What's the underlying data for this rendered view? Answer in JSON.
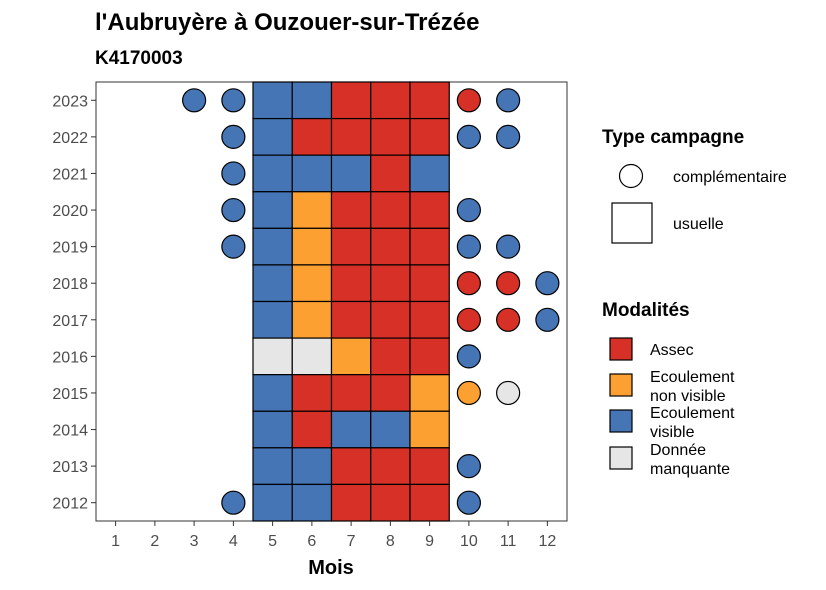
{
  "chart_data": {
    "type": "heatmap",
    "title": "l'Aubruyère à Ouzouer-sur-Trézée",
    "subtitle": "K4170003",
    "xlabel": "Mois",
    "ylabel": "",
    "x": [
      1,
      2,
      3,
      4,
      5,
      6,
      7,
      8,
      9,
      10,
      11,
      12
    ],
    "y": [
      2012,
      2013,
      2014,
      2015,
      2016,
      2017,
      2018,
      2019,
      2020,
      2021,
      2022,
      2023
    ],
    "legend_campagne": {
      "title": "Type campagne",
      "items": [
        {
          "key": "complementaire",
          "label": "complémentaire",
          "shape": "circle"
        },
        {
          "key": "usuelle",
          "label": "usuelle",
          "shape": "square"
        }
      ]
    },
    "legend_modalites": {
      "title": "Modalités",
      "items": [
        {
          "key": "assec",
          "label_lines": [
            "Assec"
          ],
          "color": "#D73027"
        },
        {
          "key": "ecoulement_non_visible",
          "label_lines": [
            "Ecoulement",
            "non visible"
          ],
          "color": "#FDA032"
        },
        {
          "key": "ecoulement_visible",
          "label_lines": [
            "Ecoulement",
            "visible"
          ],
          "color": "#4575B4"
        },
        {
          "key": "donnee_manquante",
          "label_lines": [
            "Donnée",
            "manquante"
          ],
          "color": "#E6E6E6"
        }
      ]
    },
    "observations": [
      {
        "year": 2023,
        "month": 3,
        "campagne": "complementaire",
        "modalite": "ecoulement_visible"
      },
      {
        "year": 2023,
        "month": 4,
        "campagne": "complementaire",
        "modalite": "ecoulement_visible"
      },
      {
        "year": 2023,
        "month": 5,
        "campagne": "usuelle",
        "modalite": "ecoulement_visible"
      },
      {
        "year": 2023,
        "month": 6,
        "campagne": "usuelle",
        "modalite": "ecoulement_visible"
      },
      {
        "year": 2023,
        "month": 7,
        "campagne": "usuelle",
        "modalite": "assec"
      },
      {
        "year": 2023,
        "month": 8,
        "campagne": "usuelle",
        "modalite": "assec"
      },
      {
        "year": 2023,
        "month": 9,
        "campagne": "usuelle",
        "modalite": "assec"
      },
      {
        "year": 2023,
        "month": 10,
        "campagne": "complementaire",
        "modalite": "assec"
      },
      {
        "year": 2023,
        "month": 11,
        "campagne": "complementaire",
        "modalite": "ecoulement_visible"
      },
      {
        "year": 2022,
        "month": 4,
        "campagne": "complementaire",
        "modalite": "ecoulement_visible"
      },
      {
        "year": 2022,
        "month": 5,
        "campagne": "usuelle",
        "modalite": "ecoulement_visible"
      },
      {
        "year": 2022,
        "month": 6,
        "campagne": "usuelle",
        "modalite": "assec"
      },
      {
        "year": 2022,
        "month": 7,
        "campagne": "usuelle",
        "modalite": "assec"
      },
      {
        "year": 2022,
        "month": 8,
        "campagne": "usuelle",
        "modalite": "assec"
      },
      {
        "year": 2022,
        "month": 9,
        "campagne": "usuelle",
        "modalite": "assec"
      },
      {
        "year": 2022,
        "month": 10,
        "campagne": "complementaire",
        "modalite": "ecoulement_visible"
      },
      {
        "year": 2022,
        "month": 11,
        "campagne": "complementaire",
        "modalite": "ecoulement_visible"
      },
      {
        "year": 2021,
        "month": 4,
        "campagne": "complementaire",
        "modalite": "ecoulement_visible"
      },
      {
        "year": 2021,
        "month": 5,
        "campagne": "usuelle",
        "modalite": "ecoulement_visible"
      },
      {
        "year": 2021,
        "month": 6,
        "campagne": "usuelle",
        "modalite": "ecoulement_visible"
      },
      {
        "year": 2021,
        "month": 7,
        "campagne": "usuelle",
        "modalite": "ecoulement_visible"
      },
      {
        "year": 2021,
        "month": 8,
        "campagne": "usuelle",
        "modalite": "assec"
      },
      {
        "year": 2021,
        "month": 9,
        "campagne": "usuelle",
        "modalite": "ecoulement_visible"
      },
      {
        "year": 2020,
        "month": 4,
        "campagne": "complementaire",
        "modalite": "ecoulement_visible"
      },
      {
        "year": 2020,
        "month": 5,
        "campagne": "usuelle",
        "modalite": "ecoulement_visible"
      },
      {
        "year": 2020,
        "month": 6,
        "campagne": "usuelle",
        "modalite": "ecoulement_non_visible"
      },
      {
        "year": 2020,
        "month": 7,
        "campagne": "usuelle",
        "modalite": "assec"
      },
      {
        "year": 2020,
        "month": 8,
        "campagne": "usuelle",
        "modalite": "assec"
      },
      {
        "year": 2020,
        "month": 9,
        "campagne": "usuelle",
        "modalite": "assec"
      },
      {
        "year": 2020,
        "month": 10,
        "campagne": "complementaire",
        "modalite": "ecoulement_visible"
      },
      {
        "year": 2019,
        "month": 4,
        "campagne": "complementaire",
        "modalite": "ecoulement_visible"
      },
      {
        "year": 2019,
        "month": 5,
        "campagne": "usuelle",
        "modalite": "ecoulement_visible"
      },
      {
        "year": 2019,
        "month": 6,
        "campagne": "usuelle",
        "modalite": "ecoulement_non_visible"
      },
      {
        "year": 2019,
        "month": 7,
        "campagne": "usuelle",
        "modalite": "assec"
      },
      {
        "year": 2019,
        "month": 8,
        "campagne": "usuelle",
        "modalite": "assec"
      },
      {
        "year": 2019,
        "month": 9,
        "campagne": "usuelle",
        "modalite": "assec"
      },
      {
        "year": 2019,
        "month": 10,
        "campagne": "complementaire",
        "modalite": "ecoulement_visible"
      },
      {
        "year": 2019,
        "month": 11,
        "campagne": "complementaire",
        "modalite": "ecoulement_visible"
      },
      {
        "year": 2018,
        "month": 5,
        "campagne": "usuelle",
        "modalite": "ecoulement_visible"
      },
      {
        "year": 2018,
        "month": 6,
        "campagne": "usuelle",
        "modalite": "ecoulement_non_visible"
      },
      {
        "year": 2018,
        "month": 7,
        "campagne": "usuelle",
        "modalite": "assec"
      },
      {
        "year": 2018,
        "month": 8,
        "campagne": "usuelle",
        "modalite": "assec"
      },
      {
        "year": 2018,
        "month": 9,
        "campagne": "usuelle",
        "modalite": "assec"
      },
      {
        "year": 2018,
        "month": 10,
        "campagne": "complementaire",
        "modalite": "assec"
      },
      {
        "year": 2018,
        "month": 11,
        "campagne": "complementaire",
        "modalite": "assec"
      },
      {
        "year": 2018,
        "month": 12,
        "campagne": "complementaire",
        "modalite": "ecoulement_visible"
      },
      {
        "year": 2017,
        "month": 5,
        "campagne": "usuelle",
        "modalite": "ecoulement_visible"
      },
      {
        "year": 2017,
        "month": 6,
        "campagne": "usuelle",
        "modalite": "ecoulement_non_visible"
      },
      {
        "year": 2017,
        "month": 7,
        "campagne": "usuelle",
        "modalite": "assec"
      },
      {
        "year": 2017,
        "month": 8,
        "campagne": "usuelle",
        "modalite": "assec"
      },
      {
        "year": 2017,
        "month": 9,
        "campagne": "usuelle",
        "modalite": "assec"
      },
      {
        "year": 2017,
        "month": 10,
        "campagne": "complementaire",
        "modalite": "assec"
      },
      {
        "year": 2017,
        "month": 11,
        "campagne": "complementaire",
        "modalite": "assec"
      },
      {
        "year": 2017,
        "month": 12,
        "campagne": "complementaire",
        "modalite": "ecoulement_visible"
      },
      {
        "year": 2016,
        "month": 5,
        "campagne": "usuelle",
        "modalite": "donnee_manquante"
      },
      {
        "year": 2016,
        "month": 6,
        "campagne": "usuelle",
        "modalite": "donnee_manquante"
      },
      {
        "year": 2016,
        "month": 7,
        "campagne": "usuelle",
        "modalite": "ecoulement_non_visible"
      },
      {
        "year": 2016,
        "month": 8,
        "campagne": "usuelle",
        "modalite": "assec"
      },
      {
        "year": 2016,
        "month": 9,
        "campagne": "usuelle",
        "modalite": "assec"
      },
      {
        "year": 2016,
        "month": 10,
        "campagne": "complementaire",
        "modalite": "ecoulement_visible"
      },
      {
        "year": 2015,
        "month": 5,
        "campagne": "usuelle",
        "modalite": "ecoulement_visible"
      },
      {
        "year": 2015,
        "month": 6,
        "campagne": "usuelle",
        "modalite": "assec"
      },
      {
        "year": 2015,
        "month": 7,
        "campagne": "usuelle",
        "modalite": "assec"
      },
      {
        "year": 2015,
        "month": 8,
        "campagne": "usuelle",
        "modalite": "assec"
      },
      {
        "year": 2015,
        "month": 9,
        "campagne": "usuelle",
        "modalite": "ecoulement_non_visible"
      },
      {
        "year": 2015,
        "month": 10,
        "campagne": "complementaire",
        "modalite": "ecoulement_non_visible"
      },
      {
        "year": 2015,
        "month": 11,
        "campagne": "complementaire",
        "modalite": "donnee_manquante"
      },
      {
        "year": 2014,
        "month": 5,
        "campagne": "usuelle",
        "modalite": "ecoulement_visible"
      },
      {
        "year": 2014,
        "month": 6,
        "campagne": "usuelle",
        "modalite": "assec"
      },
      {
        "year": 2014,
        "month": 7,
        "campagne": "usuelle",
        "modalite": "ecoulement_visible"
      },
      {
        "year": 2014,
        "month": 8,
        "campagne": "usuelle",
        "modalite": "ecoulement_visible"
      },
      {
        "year": 2014,
        "month": 9,
        "campagne": "usuelle",
        "modalite": "ecoulement_non_visible"
      },
      {
        "year": 2013,
        "month": 5,
        "campagne": "usuelle",
        "modalite": "ecoulement_visible"
      },
      {
        "year": 2013,
        "month": 6,
        "campagne": "usuelle",
        "modalite": "ecoulement_visible"
      },
      {
        "year": 2013,
        "month": 7,
        "campagne": "usuelle",
        "modalite": "assec"
      },
      {
        "year": 2013,
        "month": 8,
        "campagne": "usuelle",
        "modalite": "assec"
      },
      {
        "year": 2013,
        "month": 9,
        "campagne": "usuelle",
        "modalite": "assec"
      },
      {
        "year": 2013,
        "month": 10,
        "campagne": "complementaire",
        "modalite": "ecoulement_visible"
      },
      {
        "year": 2012,
        "month": 4,
        "campagne": "complementaire",
        "modalite": "ecoulement_visible"
      },
      {
        "year": 2012,
        "month": 5,
        "campagne": "usuelle",
        "modalite": "ecoulement_visible"
      },
      {
        "year": 2012,
        "month": 6,
        "campagne": "usuelle",
        "modalite": "ecoulement_visible"
      },
      {
        "year": 2012,
        "month": 7,
        "campagne": "usuelle",
        "modalite": "assec"
      },
      {
        "year": 2012,
        "month": 8,
        "campagne": "usuelle",
        "modalite": "assec"
      },
      {
        "year": 2012,
        "month": 9,
        "campagne": "usuelle",
        "modalite": "assec"
      },
      {
        "year": 2012,
        "month": 10,
        "campagne": "complementaire",
        "modalite": "ecoulement_visible"
      }
    ]
  }
}
